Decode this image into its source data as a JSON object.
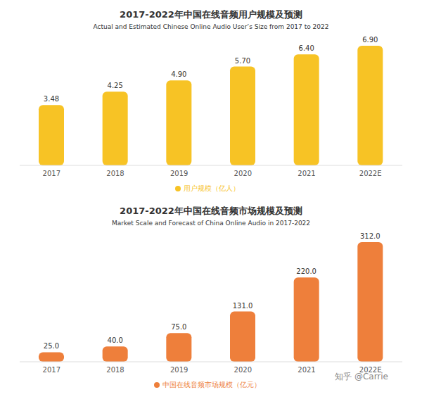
{
  "chart_data": [
    {
      "type": "bar",
      "title": "2017-2022年中国在线音频用户规模及预测",
      "subtitle": "Actual and Estimated Chinese Online Audio User’s Size from 2017 to 2022",
      "categories": [
        "2017",
        "2018",
        "2019",
        "2020",
        "2021",
        "2022E"
      ],
      "series": [
        {
          "name": "用户规模（亿人）",
          "color": "#f7c325",
          "values": [
            3.48,
            4.25,
            4.9,
            5.7,
            6.4,
            6.9
          ],
          "value_labels": [
            "3.48",
            "4.25",
            "4.90",
            "5.70",
            "6.40",
            "6.90"
          ]
        }
      ],
      "data_labels": true,
      "tick_labels": "x",
      "legend": "bottom"
    },
    {
      "type": "bar",
      "title": "2017-2022年中国在线音频市场规模及预测",
      "subtitle": "Market Scale and Forecast of China Online Audio in 2017-2022",
      "categories": [
        "2017",
        "2018",
        "2019",
        "2020",
        "2021",
        "2022E"
      ],
      "series": [
        {
          "name": "中国在线音频市场规模（亿元）",
          "color": "#ee7f3b",
          "values": [
            25.0,
            40.0,
            75.0,
            131.0,
            220.0,
            312.0
          ],
          "value_labels": [
            "25.0",
            "40.0",
            "75.0",
            "131.0",
            "220.0",
            "312.0"
          ]
        }
      ],
      "data_labels": true,
      "tick_labels": "x",
      "legend": "bottom",
      "annotations": [
        "知乎 @Carrie"
      ]
    }
  ]
}
